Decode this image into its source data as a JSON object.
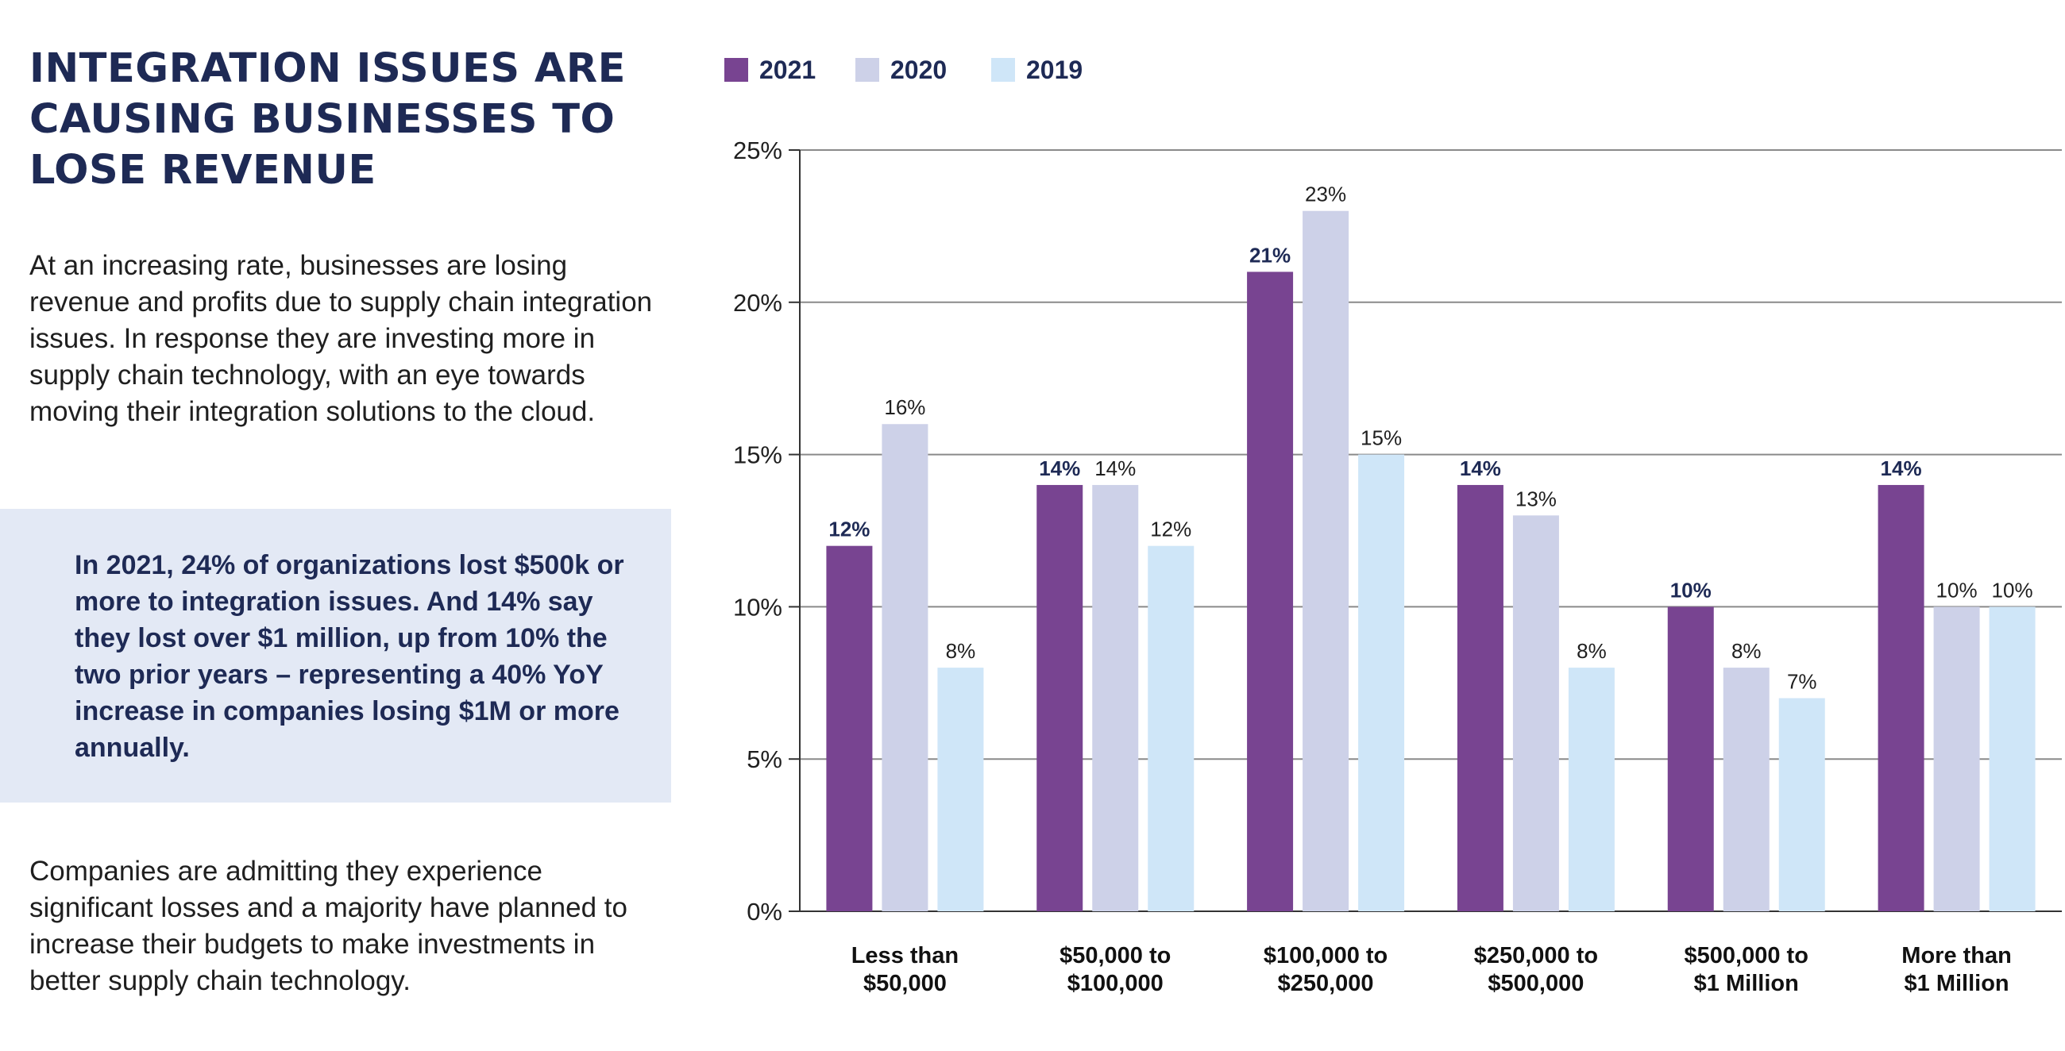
{
  "headline": "INTEGRATION ISSUES ARE CAUSING BUSINESSES TO LOSE REVENUE",
  "intro": "At an increasing rate, businesses are losing revenue and profits due to supply chain integration issues. In response they are investing more in supply chain technology, with an eye towards moving their integration solutions to the cloud.",
  "callout": "In 2021, 24% of organizations lost $500k or more to integration issues. And 14% say they lost over $1 million, up from 10% the two prior years – representing a 40% YoY increase in companies losing $1M or more annually.",
  "closing": "Companies are admitting they experience significant losses and a majority have planned to increase their budgets to make investments in better supply chain technology.",
  "chart_data": {
    "type": "bar",
    "title": "",
    "xlabel": "",
    "ylabel": "",
    "ylim": [
      0,
      25
    ],
    "yticks": [
      0,
      5,
      10,
      15,
      20,
      25
    ],
    "ytick_labels": [
      "0%",
      "5%",
      "10%",
      "15%",
      "20%",
      "25%"
    ],
    "grid": true,
    "legend_position": "top-left",
    "categories": [
      [
        "Less than",
        "$50,000"
      ],
      [
        "$50,000 to",
        "$100,000"
      ],
      [
        "$100,000 to",
        "$250,000"
      ],
      [
        "$250,000 to",
        "$500,000"
      ],
      [
        "$500,000 to",
        "$1 Million"
      ],
      [
        "More than",
        "$1 Million"
      ]
    ],
    "series": [
      {
        "name": "2021",
        "color": "#784491",
        "bold_labels": true,
        "values": [
          12,
          14,
          21,
          14,
          10,
          14
        ],
        "labels": [
          "12%",
          "14%",
          "21%",
          "14%",
          "10%",
          "14%"
        ]
      },
      {
        "name": "2020",
        "color": "#cdd1e8",
        "bold_labels": false,
        "values": [
          16,
          14,
          23,
          13,
          8,
          10
        ],
        "labels": [
          "16%",
          "14%",
          "23%",
          "13%",
          "8%",
          "10%"
        ]
      },
      {
        "name": "2019",
        "color": "#cfe6f8",
        "bold_labels": false,
        "values": [
          8,
          12,
          15,
          8,
          7,
          10
        ],
        "labels": [
          "8%",
          "12%",
          "15%",
          "8%",
          "7%",
          "10%"
        ]
      }
    ]
  },
  "colors": {
    "navy": "#1e2a55",
    "axis": "#333333",
    "grid": "#8a8a8a",
    "callout_bg": "#e3e9f5"
  }
}
